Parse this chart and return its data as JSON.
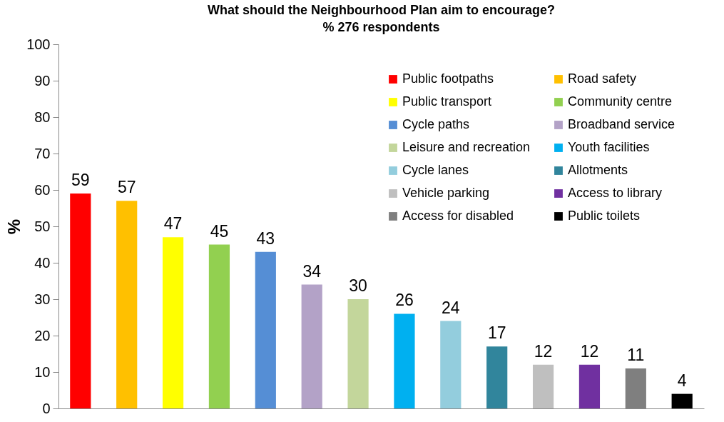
{
  "chart_data": {
    "type": "bar",
    "title": "What should the Neighbourhood Plan aim to encourage?",
    "subtitle": "% 276 respondents",
    "ylabel": "%",
    "categories": [
      null,
      null,
      null,
      null,
      null,
      null,
      null,
      null,
      null,
      null,
      null,
      null,
      null,
      null
    ],
    "series": [
      {
        "name": "Public footpaths",
        "color": "#ff0000",
        "values": [
          59,
          null,
          null,
          null,
          null,
          null,
          null,
          null,
          null,
          null,
          null,
          null,
          null,
          null
        ]
      },
      {
        "name": "Road safety",
        "color": "#ffc000",
        "values": [
          null,
          57,
          null,
          null,
          null,
          null,
          null,
          null,
          null,
          null,
          null,
          null,
          null,
          null
        ]
      },
      {
        "name": "Public transport",
        "color": "#ffff00",
        "values": [
          null,
          null,
          47,
          null,
          null,
          null,
          null,
          null,
          null,
          null,
          null,
          null,
          null,
          null
        ]
      },
      {
        "name": "Community centre",
        "color": "#92d050",
        "values": [
          null,
          null,
          null,
          45,
          null,
          null,
          null,
          null,
          null,
          null,
          null,
          null,
          null,
          null
        ]
      },
      {
        "name": "Cycle paths",
        "color": "#558ed5",
        "values": [
          null,
          null,
          null,
          null,
          43,
          null,
          null,
          null,
          null,
          null,
          null,
          null,
          null,
          null
        ]
      },
      {
        "name": "Broadband service",
        "color": "#b3a2c7",
        "values": [
          null,
          null,
          null,
          null,
          null,
          34,
          null,
          null,
          null,
          null,
          null,
          null,
          null,
          null
        ]
      },
      {
        "name": "Leisure and recreation",
        "color": "#c3d69b",
        "values": [
          null,
          null,
          null,
          null,
          null,
          null,
          30,
          null,
          null,
          null,
          null,
          null,
          null,
          null
        ]
      },
      {
        "name": "Youth facilities",
        "color": "#00b0f0",
        "values": [
          null,
          null,
          null,
          null,
          null,
          null,
          null,
          26,
          null,
          null,
          null,
          null,
          null,
          null
        ]
      },
      {
        "name": "Cycle lanes",
        "color": "#93cddd",
        "values": [
          null,
          null,
          null,
          null,
          null,
          null,
          null,
          null,
          24,
          null,
          null,
          null,
          null,
          null
        ]
      },
      {
        "name": "Allotments",
        "color": "#31859c",
        "values": [
          null,
          null,
          null,
          null,
          null,
          null,
          null,
          null,
          null,
          17,
          null,
          null,
          null,
          null
        ]
      },
      {
        "name": "Vehicle parking",
        "color": "#bfbfbf",
        "values": [
          null,
          null,
          null,
          null,
          null,
          null,
          null,
          null,
          null,
          null,
          12,
          null,
          null,
          null
        ]
      },
      {
        "name": "Access to library",
        "color": "#7030a0",
        "values": [
          null,
          null,
          null,
          null,
          null,
          null,
          null,
          null,
          null,
          null,
          null,
          12,
          null,
          null
        ]
      },
      {
        "name": "Access for disabled",
        "color": "#7f7f7f",
        "values": [
          null,
          null,
          null,
          null,
          null,
          null,
          null,
          null,
          null,
          null,
          null,
          null,
          11,
          null
        ]
      },
      {
        "name": "Public toilets",
        "color": "#000000",
        "values": [
          null,
          null,
          null,
          null,
          null,
          null,
          null,
          null,
          null,
          null,
          null,
          null,
          null,
          4
        ]
      }
    ],
    "ylim": [
      0,
      100
    ],
    "yticks": [
      0,
      10,
      20,
      30,
      40,
      50,
      60,
      70,
      80,
      90,
      100
    ],
    "data_labels": true,
    "grid": false,
    "legend": "top right",
    "tick_labels": "y"
  }
}
